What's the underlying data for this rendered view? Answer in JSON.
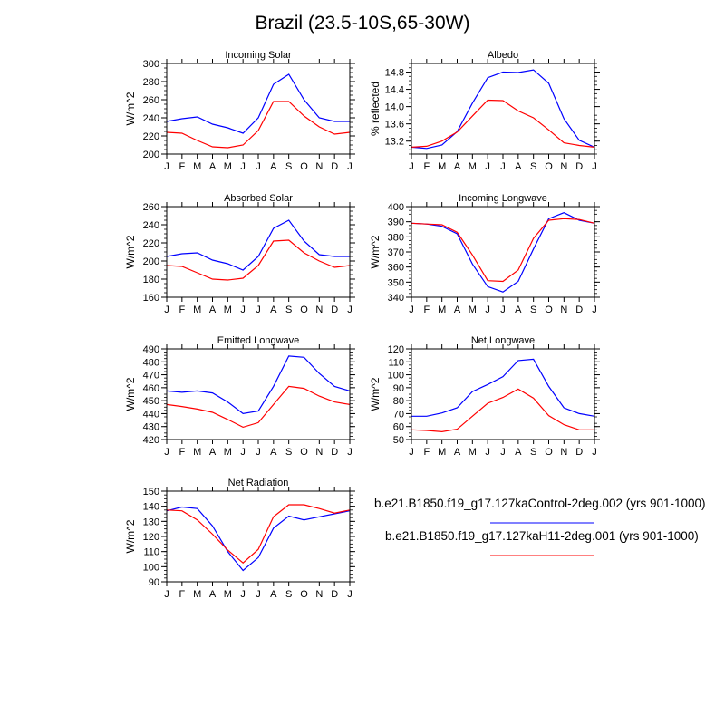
{
  "title": "Brazil (23.5-10S,65-30W)",
  "legend": [
    {
      "label": "b.e21.B1850.f19_g17.127kaControl-2deg.002 (yrs 901-1000)",
      "color": "#0000ff"
    },
    {
      "label": "b.e21.B1850.f19_g17.127kaH11-2deg.001 (yrs 901-1000)",
      "color": "#ff0000"
    }
  ],
  "chart_data": [
    {
      "type": "line",
      "title": "Incoming Solar",
      "ylabel": "W/m^2",
      "ylim": [
        200,
        300
      ],
      "yticks": [
        200,
        220,
        240,
        260,
        280,
        300
      ],
      "categories": [
        "J",
        "F",
        "M",
        "A",
        "M",
        "J",
        "J",
        "A",
        "S",
        "O",
        "N",
        "D",
        "J"
      ],
      "series": [
        {
          "values": [
            236,
            239,
            241,
            233,
            229,
            223,
            240,
            277,
            288,
            260,
            240,
            236,
            236
          ]
        },
        {
          "values": [
            224,
            223,
            215,
            208,
            207,
            210,
            226,
            258,
            258,
            242,
            230,
            222,
            224
          ]
        }
      ]
    },
    {
      "type": "line",
      "title": "Albedo",
      "ylabel": "% reflected",
      "ylim": [
        12.9,
        15.0
      ],
      "yticks": [
        13.2,
        13.6,
        14.0,
        14.4,
        14.8
      ],
      "categories": [
        "J",
        "F",
        "M",
        "A",
        "M",
        "J",
        "J",
        "A",
        "S",
        "O",
        "N",
        "D",
        "J"
      ],
      "series": [
        {
          "values": [
            13.06,
            13.03,
            13.11,
            13.42,
            14.08,
            14.67,
            14.8,
            14.79,
            14.85,
            14.54,
            13.72,
            13.22,
            13.06
          ]
        },
        {
          "values": [
            13.06,
            13.08,
            13.2,
            13.41,
            13.78,
            14.15,
            14.14,
            13.9,
            13.74,
            13.46,
            13.16,
            13.1,
            13.06
          ]
        }
      ]
    },
    {
      "type": "line",
      "title": "Absorbed Solar",
      "ylabel": "W/m^2",
      "ylim": [
        160,
        260
      ],
      "yticks": [
        160,
        180,
        200,
        220,
        240,
        260
      ],
      "categories": [
        "J",
        "F",
        "M",
        "A",
        "M",
        "J",
        "J",
        "A",
        "S",
        "O",
        "N",
        "D",
        "J"
      ],
      "series": [
        {
          "values": [
            205,
            208,
            209,
            201,
            197,
            190,
            205,
            236,
            245,
            222,
            207,
            205,
            205
          ]
        },
        {
          "values": [
            195,
            194,
            187,
            180,
            179,
            181,
            195,
            222,
            223,
            209,
            200,
            193,
            195
          ]
        }
      ]
    },
    {
      "type": "line",
      "title": "Incoming Longwave",
      "ylabel": "W/m^2",
      "ylim": [
        340,
        400
      ],
      "yticks": [
        340,
        350,
        360,
        370,
        380,
        390,
        400
      ],
      "categories": [
        "J",
        "F",
        "M",
        "A",
        "M",
        "J",
        "J",
        "A",
        "S",
        "O",
        "N",
        "D",
        "J"
      ],
      "series": [
        {
          "values": [
            389,
            388.5,
            387,
            382,
            362,
            347,
            343.5,
            350.5,
            372,
            392,
            396,
            391,
            389
          ]
        },
        {
          "values": [
            389,
            388.5,
            388,
            383,
            368,
            351,
            350.5,
            358,
            379,
            391,
            392,
            391.5,
            389
          ]
        }
      ]
    },
    {
      "type": "line",
      "title": "Emitted Longwave",
      "ylabel": "W/m^2",
      "ylim": [
        420,
        490
      ],
      "yticks": [
        420,
        430,
        440,
        450,
        460,
        470,
        480,
        490
      ],
      "categories": [
        "J",
        "F",
        "M",
        "A",
        "M",
        "J",
        "J",
        "A",
        "S",
        "O",
        "N",
        "D",
        "J"
      ],
      "series": [
        {
          "values": [
            457.5,
            456.5,
            457.5,
            456,
            449,
            440,
            442,
            461,
            484.5,
            483.5,
            471,
            461,
            457.5
          ]
        },
        {
          "values": [
            447,
            445.5,
            443.5,
            441,
            435.5,
            429.5,
            433,
            447,
            461,
            459.5,
            453.5,
            449,
            447
          ]
        }
      ]
    },
    {
      "type": "line",
      "title": "Net Longwave",
      "ylabel": "W/m^2",
      "ylim": [
        50,
        120
      ],
      "yticks": [
        50,
        60,
        70,
        80,
        90,
        100,
        110,
        120
      ],
      "categories": [
        "J",
        "F",
        "M",
        "A",
        "M",
        "J",
        "J",
        "A",
        "S",
        "O",
        "N",
        "D",
        "J"
      ],
      "series": [
        {
          "values": [
            68,
            68,
            70.5,
            74.5,
            87,
            92.5,
            98.5,
            111,
            112,
            91,
            74.5,
            70,
            68
          ]
        },
        {
          "values": [
            57.5,
            57,
            56,
            58,
            68,
            78,
            82.5,
            89,
            82,
            68.5,
            61.5,
            57.5,
            57.5
          ]
        }
      ]
    },
    {
      "type": "line",
      "title": "Net Radiation",
      "ylabel": "W/m^2",
      "ylim": [
        90,
        150
      ],
      "yticks": [
        90,
        100,
        110,
        120,
        130,
        140,
        150
      ],
      "categories": [
        "J",
        "F",
        "M",
        "A",
        "M",
        "J",
        "J",
        "A",
        "S",
        "O",
        "N",
        "D",
        "J"
      ],
      "series": [
        {
          "values": [
            137,
            139.5,
            138.5,
            127,
            110,
            97.5,
            106,
            125.5,
            133.5,
            131,
            133,
            135,
            137
          ]
        },
        {
          "values": [
            137.5,
            137,
            131,
            121.5,
            111,
            102.5,
            111.5,
            133,
            141,
            141,
            138.5,
            135.5,
            137.5
          ]
        }
      ]
    }
  ]
}
